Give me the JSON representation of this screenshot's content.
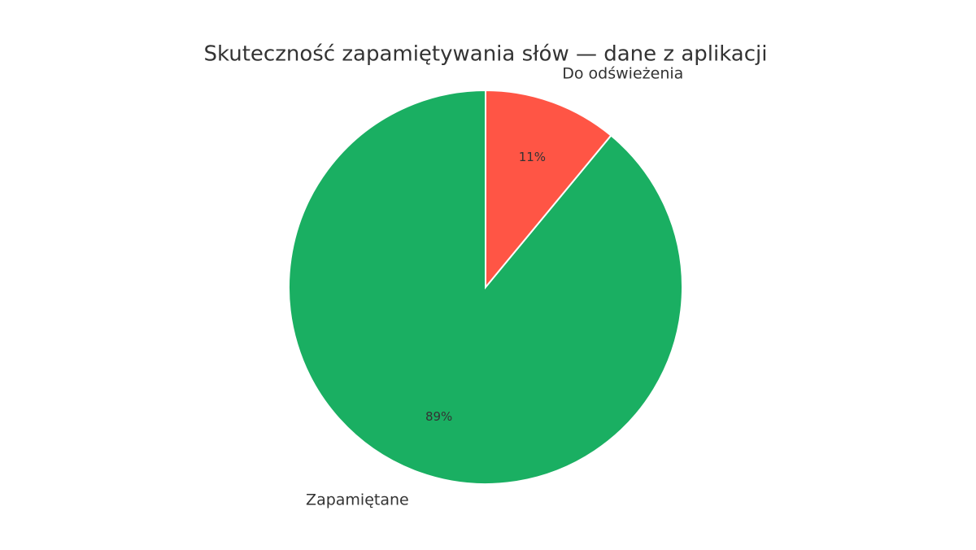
{
  "chart_data": {
    "type": "pie",
    "title": "Skuteczność zapamiętywania słów — dane z aplikacji",
    "categories": [
      "Zapamiętane",
      "Do odświeżenia"
    ],
    "values": [
      89,
      11
    ],
    "value_labels": [
      "89%",
      "11%"
    ],
    "colors": [
      "#1aaf62",
      "#ff5545"
    ]
  }
}
